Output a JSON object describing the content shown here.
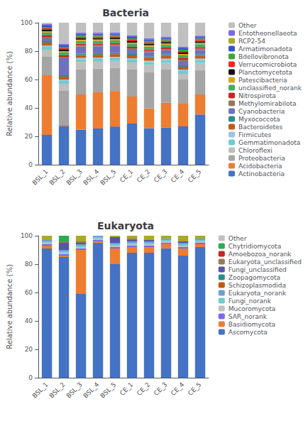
{
  "chart_data": [
    {
      "type": "bar",
      "title": "Bacteria",
      "ylabel": "Relative abundance (%)",
      "categories": [
        "BSL_1",
        "BSL_2",
        "BSL_3",
        "BSL_4",
        "BSL_5",
        "CE_1",
        "CE_2",
        "CE_3",
        "CE_4",
        "CE_5"
      ],
      "stacked": true,
      "legend": "right",
      "grid": false,
      "ylim": [
        0,
        100
      ],
      "yticks": [
        0,
        20,
        40,
        60,
        80,
        100
      ],
      "series": [
        {
          "name": "Actinobacteria",
          "color": "#4472C4",
          "values": [
            21,
            27,
            24.75,
            25.49,
            26.92,
            29,
            25.74,
            26.21,
            27,
            35.35
          ]
        },
        {
          "name": "Acidobacteria",
          "color": "#ED7D31",
          "values": [
            42,
            1,
            24.75,
            25.49,
            25,
            19,
            13.86,
            17.48,
            16,
            14.14
          ]
        },
        {
          "name": "Proteobacteria",
          "color": "#A5A5A5",
          "values": [
            13,
            24,
            17.82,
            16.67,
            16.35,
            19,
            25.74,
            23.3,
            17,
            17.17
          ]
        },
        {
          "name": "Chloroflexi",
          "color": "#BFBFBF",
          "values": [
            5,
            5,
            4.95,
            4.9,
            4.81,
            5,
            4.95,
            4.85,
            4,
            5.05
          ]
        },
        {
          "name": "Gemmatimonadota",
          "color": "#70CCCC",
          "values": [
            2,
            2,
            1.98,
            1.96,
            1.92,
            2,
            1.98,
            1.94,
            2,
            2.02
          ]
        },
        {
          "name": "Firmicutes",
          "color": "#9DC3E6",
          "values": [
            1,
            1,
            0.99,
            0.98,
            0.96,
            1,
            0.99,
            0.97,
            1,
            1.01
          ]
        },
        {
          "name": "Bacteroidetes",
          "color": "#C55A11",
          "values": [
            2,
            2,
            1.98,
            1.96,
            1.92,
            2,
            1.98,
            1.94,
            2,
            2.02
          ]
        },
        {
          "name": "Myxococcota",
          "color": "#2E8B8B",
          "values": [
            1,
            1,
            0.99,
            0.98,
            0.96,
            1,
            0.99,
            0.97,
            1,
            1.01
          ]
        },
        {
          "name": "Cyanobacteria",
          "color": "#7070C0",
          "values": [
            2,
            12,
            4.95,
            4.9,
            4.81,
            3,
            2.97,
            2.91,
            3,
            3.03
          ]
        },
        {
          "name": "Methylomirabilota",
          "color": "#997755",
          "values": [
            1,
            1,
            0.99,
            0.98,
            0.96,
            1,
            0.99,
            0.97,
            1,
            1.01
          ]
        },
        {
          "name": "Nitrospirota",
          "color": "#CC2222",
          "values": [
            1,
            1,
            0.99,
            0.98,
            0.96,
            1,
            0.99,
            0.97,
            1,
            1.01
          ]
        },
        {
          "name": "unclassified_norank",
          "color": "#44AA66",
          "values": [
            2,
            2,
            1.98,
            1.96,
            1.92,
            2,
            1.98,
            1.94,
            2,
            2.02
          ]
        },
        {
          "name": "Patescibacteria",
          "color": "#DAA520",
          "values": [
            1,
            1,
            0.99,
            0.98,
            0.96,
            1,
            0.99,
            0.97,
            1,
            1.01
          ]
        },
        {
          "name": "Planctomycetota",
          "color": "#111111",
          "values": [
            1,
            1,
            0.99,
            0.98,
            0.96,
            1,
            0.99,
            0.97,
            1,
            1.01
          ]
        },
        {
          "name": "Verrucomicrobiota",
          "color": "#FF2222",
          "values": [
            1,
            1,
            0.99,
            0.98,
            0.96,
            1,
            0.99,
            0.97,
            1,
            1.01
          ]
        },
        {
          "name": "Bdellovibronota",
          "color": "#33AA33",
          "values": [
            1,
            1,
            0.99,
            0.98,
            0.96,
            1,
            0.99,
            0.97,
            1,
            1.01
          ]
        },
        {
          "name": "Armatimonadota",
          "color": "#3355CC",
          "values": [
            1,
            1,
            0.99,
            0.98,
            0.96,
            1,
            0.99,
            0.97,
            1,
            1.01
          ]
        },
        {
          "name": "RCP2-54",
          "color": "#AAAA22",
          "values": [
            0,
            0,
            0,
            0,
            0,
            0,
            0,
            0,
            0,
            0
          ]
        },
        {
          "name": "Entotheonellaeota",
          "color": "#7B68EE",
          "values": [
            1,
            1,
            0.99,
            0.98,
            0.96,
            1,
            0.99,
            0.97,
            1,
            1.01
          ]
        },
        {
          "name": "Other",
          "color": "#C0C0C0",
          "values": [
            1,
            15,
            6.93,
            6.86,
            6.73,
            9,
            10.89,
            9.71,
            17,
            9.09
          ]
        }
      ]
    },
    {
      "type": "bar",
      "title": "Eukaryota",
      "ylabel": "Relative abundance (%)",
      "categories": [
        "BSL_1",
        "BSL_2",
        "BSL_3",
        "BSL_4",
        "BSL_5",
        "CE_1",
        "CE_2",
        "CE_3",
        "CE_4",
        "CE_5"
      ],
      "stacked": true,
      "legend": "right",
      "grid": false,
      "ylim": [
        0,
        100
      ],
      "yticks": [
        0,
        20,
        40,
        60,
        80,
        100
      ],
      "series": [
        {
          "name": "Ascomycota",
          "color": "#4472C4",
          "values": [
            91,
            85,
            59,
            95.05,
            80,
            88,
            88,
            91.09,
            86,
            92
          ]
        },
        {
          "name": "Basidiomycota",
          "color": "#ED7D31",
          "values": [
            2,
            1,
            31,
            0.99,
            11,
            4,
            4,
            2.97,
            5,
            2
          ]
        },
        {
          "name": "SAR_norank",
          "color": "#7B68EE",
          "values": [
            1,
            1,
            1,
            0.99,
            1,
            1,
            1,
            0.99,
            1,
            1
          ]
        },
        {
          "name": "Mucoromycota",
          "color": "#C0C0C0",
          "values": [
            1,
            1,
            1,
            0.99,
            1,
            1,
            1,
            0.99,
            1,
            1
          ]
        },
        {
          "name": "Fungi_norank",
          "color": "#70CCCC",
          "values": [
            1,
            1,
            1,
            0.99,
            1,
            1,
            1,
            0.99,
            1,
            1
          ]
        },
        {
          "name": "Eukaryota_norank",
          "color": "#6B9FD4",
          "values": [
            1,
            1,
            1,
            0.99,
            1,
            1,
            1,
            0.99,
            1,
            1
          ]
        },
        {
          "name": "Schizoplasmodida",
          "color": "#C55A11",
          "values": [
            0,
            0,
            0,
            0,
            0,
            0,
            0,
            0,
            0,
            0
          ]
        },
        {
          "name": "Zoopagomycota",
          "color": "#2E8B8B",
          "values": [
            0,
            0,
            0,
            0,
            0,
            0,
            0,
            0,
            0,
            0
          ]
        },
        {
          "name": "Fungi_unclassified",
          "color": "#5555AA",
          "values": [
            0,
            5,
            1,
            0,
            4,
            1,
            1,
            0,
            1,
            0
          ]
        },
        {
          "name": "Eukaryota_unclassified",
          "color": "#997755",
          "values": [
            0,
            1,
            1,
            0,
            0,
            1,
            0,
            0,
            0,
            0
          ]
        },
        {
          "name": "Amoebozoa_norank",
          "color": "#CC2222",
          "values": [
            0,
            0,
            0,
            0,
            0,
            0,
            0,
            0,
            0,
            0
          ]
        },
        {
          "name": "Chytridiomycota",
          "color": "#2EAA55",
          "values": [
            0,
            4,
            0,
            0,
            0,
            0,
            0,
            0,
            0,
            0
          ]
        },
        {
          "name": "Other",
          "color": "#AAAA22",
          "values": [
            3,
            0,
            4,
            0,
            1,
            2,
            3,
            1.98,
            4,
            2
          ]
        }
      ]
    }
  ]
}
